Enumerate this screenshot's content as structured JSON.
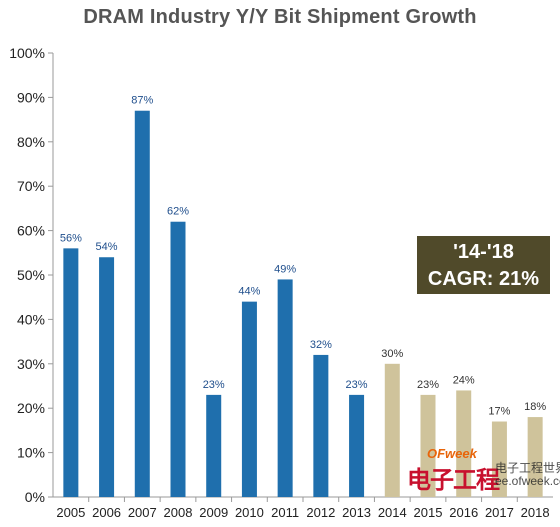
{
  "chart_data": {
    "type": "bar",
    "title": "DRAM Industry Y/Y Bit Shipment Growth",
    "categories": [
      "2005",
      "2006",
      "2007",
      "2008",
      "2009",
      "2010",
      "2011",
      "2012",
      "2013",
      "2014",
      "2015",
      "2016",
      "2017",
      "2018"
    ],
    "values": [
      56,
      54,
      87,
      62,
      23,
      44,
      49,
      32,
      23,
      30,
      23,
      24,
      17,
      18
    ],
    "value_labels": [
      "56%",
      "54%",
      "87%",
      "62%",
      "23%",
      "44%",
      "49%",
      "32%",
      "23%",
      "30%",
      "23%",
      "24%",
      "17%",
      "18%"
    ],
    "bar_groups": [
      {
        "from_index": 0,
        "to_index": 8,
        "color": "#1f6fad",
        "label_color": "#1f4e8c"
      },
      {
        "from_index": 9,
        "to_index": 13,
        "color": "#cfc39b",
        "label_color": "#333333"
      }
    ],
    "y_ticks": [
      "0%",
      "10%",
      "20%",
      "30%",
      "40%",
      "50%",
      "60%",
      "70%",
      "80%",
      "90%",
      "100%"
    ],
    "ylim": [
      0,
      100
    ],
    "grid": false,
    "xlabel": "",
    "ylabel": ""
  },
  "annotation": {
    "line1": "'14-'18",
    "line2": "CAGR: 21%",
    "background": "#504a2a"
  },
  "watermark": {
    "brand": "OFweek",
    "main": "电子工程",
    "side_line1": "电子工程世界",
    "side_line2": "ee.ofweek.com"
  }
}
